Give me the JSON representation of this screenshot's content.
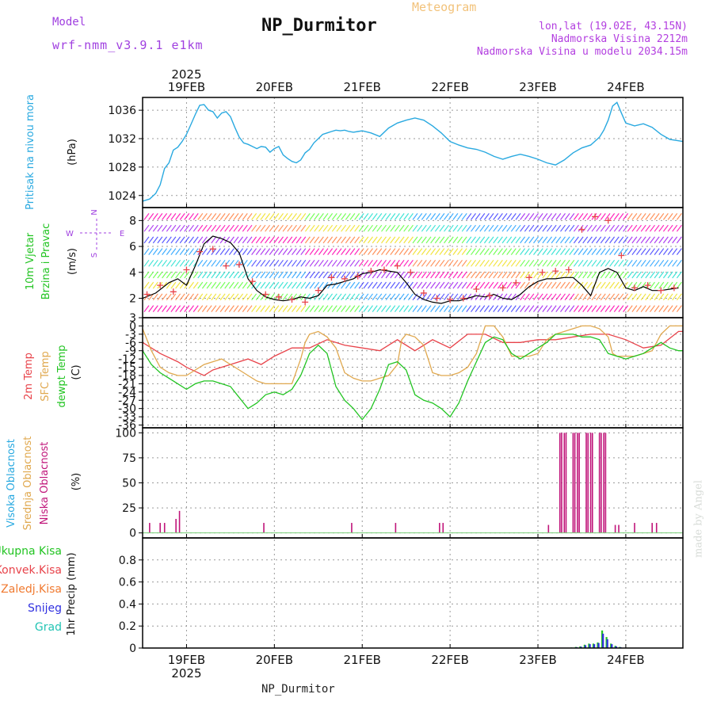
{
  "header": {
    "title": "NP_Durmitor",
    "subtitle": "Meteogram",
    "model_label": "Model",
    "model_name": "wrf-nmm_v3.9.1 e1km",
    "lonlat": "lon,lat (19.02E, 43.15N)",
    "elevation": "Nadmorska Visina 2212m",
    "model_elevation": "Nadmorska Visina u modelu 2034.15m",
    "bottom_label": "NP_Durmitor",
    "watermark": "made by Angel"
  },
  "colors": {
    "pressure": "#29a9e0",
    "wind_speed": "#000000",
    "wind_gust_marker": "#e8434a",
    "temp_2m": "#e8434a",
    "temp_sfc": "#e0a84e",
    "dewpoint": "#22c422",
    "cloud_high": "#29a9e0",
    "cloud_mid": "#e0a84e",
    "cloud_low": "#c0157a",
    "precip_total": "#22c422",
    "precip_conv": "#e8434a",
    "precip_frozen": "#f07a30",
    "precip_snow": "#3030e0",
    "precip_graupel": "#22c4b4"
  },
  "chart_data": [
    {
      "type": "line",
      "panel": "pressure",
      "labels": [
        "Pritisak na nivou mora"
      ],
      "unit": "(hPa)",
      "x_ticks": [
        "19FEB",
        "20FEB",
        "21FEB",
        "22FEB",
        "23FEB",
        "24FEB"
      ],
      "year_label": "2025",
      "x_range": [
        -0.5,
        5.65
      ],
      "ylim": [
        1022.3,
        1037.8
      ],
      "yticks": [
        1024,
        1028,
        1032,
        1036
      ],
      "grid": true,
      "series": [
        {
          "x": [
            -0.5,
            -0.42,
            -0.35,
            -0.3,
            -0.25,
            -0.2,
            -0.15,
            -0.1,
            -0.05,
            0.0,
            0.05,
            0.1,
            0.15,
            0.2,
            0.25,
            0.3,
            0.35,
            0.4,
            0.45,
            0.5,
            0.55,
            0.6,
            0.65,
            0.7,
            0.75,
            0.8,
            0.85,
            0.9,
            0.95,
            1.0,
            1.05,
            1.1,
            1.15,
            1.2,
            1.25,
            1.3,
            1.35,
            1.4,
            1.45,
            1.5,
            1.55,
            1.6,
            1.65,
            1.7,
            1.75,
            1.8,
            1.85,
            1.9,
            1.95,
            2.0,
            2.1,
            2.2,
            2.3,
            2.4,
            2.5,
            2.6,
            2.7,
            2.8,
            2.9,
            3.0,
            3.1,
            3.2,
            3.3,
            3.4,
            3.5,
            3.6,
            3.7,
            3.8,
            3.9,
            4.0,
            4.1,
            4.2,
            4.3,
            4.4,
            4.5,
            4.6,
            4.7,
            4.75,
            4.8,
            4.85,
            4.9,
            4.95,
            5.0,
            5.1,
            5.2,
            5.3,
            5.4,
            5.5,
            5.6,
            5.65
          ],
          "values": [
            1023.2,
            1023.5,
            1024.3,
            1025.5,
            1027.8,
            1028.6,
            1030.4,
            1030.8,
            1031.6,
            1032.6,
            1034.0,
            1035.4,
            1036.7,
            1036.8,
            1036.0,
            1035.8,
            1034.9,
            1035.6,
            1035.8,
            1035.1,
            1033.6,
            1032.2,
            1031.4,
            1031.2,
            1030.9,
            1030.6,
            1030.9,
            1030.8,
            1030.1,
            1030.6,
            1030.9,
            1029.7,
            1029.2,
            1028.8,
            1028.6,
            1029.0,
            1030.0,
            1030.5,
            1031.4,
            1032.0,
            1032.6,
            1032.8,
            1033.0,
            1033.2,
            1033.1,
            1033.2,
            1033.0,
            1032.9,
            1033.0,
            1033.1,
            1032.8,
            1032.3,
            1033.5,
            1034.2,
            1034.6,
            1034.9,
            1034.6,
            1033.8,
            1032.8,
            1031.6,
            1031.1,
            1030.7,
            1030.5,
            1030.1,
            1029.5,
            1029.1,
            1029.5,
            1029.8,
            1029.5,
            1029.1,
            1028.6,
            1028.3,
            1029.0,
            1030.0,
            1030.7,
            1031.1,
            1032.2,
            1033.2,
            1034.6,
            1036.6,
            1037.1,
            1035.6,
            1034.2,
            1033.8,
            1034.1,
            1033.6,
            1032.6,
            1031.9,
            1031.7,
            1031.6
          ]
        }
      ]
    },
    {
      "type": "line",
      "panel": "wind",
      "labels": [
        "10m Vjetar",
        "Brzina i Pravac"
      ],
      "unit": "(m/s)",
      "direction_legend": [
        "N",
        "W",
        "E",
        "S"
      ],
      "x_range": [
        -0.5,
        5.65
      ],
      "ylim": [
        0.5,
        9.0
      ],
      "yticks": [
        2,
        4,
        6,
        8
      ],
      "grid": true,
      "series": [
        {
          "name": "speed",
          "x": [
            -0.5,
            -0.35,
            -0.2,
            -0.1,
            0.0,
            0.1,
            0.2,
            0.3,
            0.4,
            0.5,
            0.6,
            0.7,
            0.8,
            0.9,
            1.0,
            1.1,
            1.2,
            1.3,
            1.4,
            1.5,
            1.6,
            1.7,
            1.8,
            1.9,
            2.0,
            2.1,
            2.2,
            2.3,
            2.4,
            2.5,
            2.6,
            2.7,
            2.8,
            2.9,
            3.0,
            3.1,
            3.2,
            3.3,
            3.4,
            3.5,
            3.6,
            3.7,
            3.8,
            3.9,
            4.0,
            4.1,
            4.2,
            4.3,
            4.4,
            4.5,
            4.6,
            4.7,
            4.8,
            4.9,
            5.0,
            5.1,
            5.2,
            5.3,
            5.4,
            5.5,
            5.6
          ],
          "values": [
            2.0,
            2.4,
            3.2,
            3.5,
            3.0,
            4.5,
            6.2,
            6.8,
            6.6,
            6.3,
            5.5,
            3.5,
            2.6,
            2.1,
            1.9,
            1.8,
            1.9,
            2.1,
            2.0,
            2.2,
            3.0,
            3.1,
            3.3,
            3.5,
            3.9,
            4.0,
            4.2,
            4.1,
            4.0,
            3.2,
            2.3,
            1.9,
            1.7,
            1.6,
            1.8,
            1.8,
            2.0,
            2.2,
            2.1,
            2.3,
            2.0,
            1.9,
            2.3,
            2.9,
            3.3,
            3.5,
            3.5,
            3.6,
            3.6,
            3.0,
            2.2,
            4.0,
            4.3,
            4.0,
            2.8,
            2.6,
            2.9,
            2.6,
            2.6,
            2.7,
            2.8
          ]
        },
        {
          "name": "gust",
          "x": [
            -0.45,
            -0.3,
            -0.15,
            0.0,
            0.15,
            0.3,
            0.45,
            0.6,
            0.75,
            0.9,
            1.05,
            1.2,
            1.35,
            1.5,
            1.65,
            1.8,
            1.95,
            2.1,
            2.25,
            2.4,
            2.55,
            2.7,
            2.85,
            3.0,
            3.15,
            3.3,
            3.45,
            3.6,
            3.75,
            3.9,
            4.05,
            4.2,
            4.35,
            4.5,
            4.65,
            4.8,
            4.95,
            5.1,
            5.25,
            5.4,
            5.55
          ],
          "values": [
            2.3,
            3.0,
            2.5,
            4.2,
            5.6,
            5.8,
            4.5,
            4.6,
            3.3,
            2.3,
            2.1,
            1.9,
            1.7,
            2.6,
            3.6,
            3.5,
            3.7,
            4.1,
            4.2,
            4.5,
            4.0,
            2.4,
            2.0,
            1.9,
            2.0,
            2.7,
            2.2,
            2.8,
            3.2,
            3.6,
            4.0,
            4.1,
            4.2,
            7.3,
            8.3,
            8.0,
            5.3,
            2.8,
            3.0,
            2.6,
            2.8
          ]
        }
      ]
    },
    {
      "type": "line",
      "panel": "temperature",
      "labels": [
        "2m Temp",
        "SFC Temp",
        "dewpt Temp"
      ],
      "unit": "(C)",
      "x_range": [
        -0.5,
        5.65
      ],
      "ylim": [
        -37,
        3
      ],
      "yticks": [
        3,
        0,
        -3,
        -6,
        -9,
        -12,
        -15,
        -18,
        -21,
        -24,
        -27,
        -30,
        -33,
        -36
      ],
      "grid": true,
      "series": [
        {
          "name": "2m Temp",
          "x": [
            -0.5,
            -0.3,
            -0.1,
            0.0,
            0.2,
            0.3,
            0.5,
            0.7,
            0.85,
            1.0,
            1.2,
            1.4,
            1.6,
            1.8,
            2.0,
            2.2,
            2.4,
            2.6,
            2.8,
            3.0,
            3.2,
            3.4,
            3.6,
            3.8,
            4.0,
            4.2,
            4.4,
            4.6,
            4.8,
            5.0,
            5.2,
            5.4,
            5.6,
            5.65
          ],
          "values": [
            -6,
            -10,
            -13,
            -15,
            -18,
            -16,
            -14,
            -12,
            -14,
            -11,
            -8,
            -8,
            -5,
            -7,
            -8,
            -9,
            -5,
            -9,
            -5,
            -8,
            -3,
            -3,
            -6,
            -6,
            -5,
            -5,
            -4,
            -3,
            -3,
            -5,
            -8,
            -7,
            -2,
            -2
          ]
        },
        {
          "name": "SFC Temp",
          "x": [
            -0.5,
            -0.4,
            -0.3,
            -0.2,
            -0.1,
            0.0,
            0.1,
            0.2,
            0.3,
            0.4,
            0.5,
            0.6,
            0.7,
            0.8,
            0.9,
            1.0,
            1.1,
            1.2,
            1.3,
            1.35,
            1.4,
            1.5,
            1.6,
            1.7,
            1.8,
            1.9,
            2.0,
            2.1,
            2.2,
            2.3,
            2.4,
            2.45,
            2.5,
            2.6,
            2.7,
            2.8,
            2.9,
            3.0,
            3.1,
            3.2,
            3.3,
            3.4,
            3.45,
            3.5,
            3.6,
            3.7,
            3.8,
            3.9,
            4.0,
            4.1,
            4.2,
            4.3,
            4.4,
            4.5,
            4.6,
            4.7,
            4.8,
            4.85,
            4.9,
            5.0,
            5.1,
            5.2,
            5.3,
            5.4,
            5.5,
            5.6,
            5.65
          ],
          "values": [
            -1,
            -9,
            -15,
            -17,
            -18,
            -18,
            -16,
            -14,
            -13,
            -12,
            -14,
            -16,
            -18,
            -20,
            -21,
            -21,
            -21,
            -21,
            -12,
            -6,
            -3,
            -2,
            -4,
            -8,
            -17,
            -19,
            -20,
            -20,
            -19,
            -18,
            -14,
            -5,
            -3,
            -4,
            -7,
            -17,
            -18,
            -18,
            -17,
            -15,
            -10,
            0,
            0,
            0,
            -4,
            -11,
            -11,
            -11,
            -10,
            -5,
            -3,
            -2,
            -1,
            0,
            0,
            -1,
            -4,
            -10,
            -11,
            -11,
            -11,
            -10,
            -9,
            -3,
            0,
            0,
            0
          ]
        },
        {
          "name": "dewpt Temp",
          "x": [
            -0.5,
            -0.4,
            -0.3,
            -0.2,
            -0.1,
            0.0,
            0.1,
            0.2,
            0.3,
            0.4,
            0.5,
            0.6,
            0.7,
            0.8,
            0.9,
            1.0,
            1.1,
            1.2,
            1.3,
            1.4,
            1.5,
            1.6,
            1.7,
            1.8,
            1.9,
            2.0,
            2.1,
            2.2,
            2.3,
            2.4,
            2.5,
            2.6,
            2.7,
            2.8,
            2.9,
            3.0,
            3.1,
            3.2,
            3.3,
            3.4,
            3.45,
            3.5,
            3.6,
            3.7,
            3.8,
            3.9,
            4.0,
            4.1,
            4.2,
            4.3,
            4.4,
            4.5,
            4.6,
            4.7,
            4.8,
            4.9,
            5.0,
            5.1,
            5.2,
            5.3,
            5.4,
            5.5,
            5.6,
            5.65
          ],
          "values": [
            -9,
            -14,
            -17,
            -19,
            -21,
            -23,
            -21,
            -20,
            -20,
            -21,
            -22,
            -26,
            -30,
            -28,
            -25,
            -24,
            -25,
            -23,
            -18,
            -10,
            -7,
            -10,
            -22,
            -27,
            -30,
            -34,
            -30,
            -23,
            -14,
            -13,
            -16,
            -25,
            -27,
            -28,
            -30,
            -33,
            -28,
            -20,
            -13,
            -6,
            -5,
            -4,
            -5,
            -10,
            -12,
            -10,
            -8,
            -6,
            -3,
            -3,
            -3,
            -4,
            -4,
            -5,
            -10,
            -11,
            -12,
            -11,
            -10,
            -8,
            -6,
            -8,
            -9,
            -9
          ]
        }
      ]
    },
    {
      "type": "bar",
      "panel": "cloud",
      "labels": [
        "Visoka Oblacnost",
        "Srednja Oblacnost",
        "Niska Oblacnost"
      ],
      "unit": "(%)",
      "x_range": [
        -0.5,
        5.65
      ],
      "ylim": [
        -5,
        105
      ],
      "yticks": [
        0,
        25,
        50,
        75,
        100
      ],
      "grid": true,
      "series": [
        {
          "name": "Niska Oblacnost",
          "x": [
            -0.42,
            -0.3,
            -0.25,
            -0.12,
            -0.08,
            0.88,
            1.88,
            2.38,
            2.88,
            2.92,
            4.12,
            4.25,
            4.27,
            4.3,
            4.32,
            4.4,
            4.42,
            4.45,
            4.47,
            4.55,
            4.57,
            4.6,
            4.62,
            4.7,
            4.72,
            4.75,
            4.77,
            4.88,
            4.92,
            5.1,
            5.3,
            5.35
          ],
          "values": [
            10,
            10,
            10,
            14,
            22,
            10,
            10,
            10,
            10,
            10,
            8,
            100,
            100,
            100,
            100,
            100,
            100,
            100,
            100,
            100,
            100,
            100,
            100,
            100,
            100,
            100,
            100,
            8,
            8,
            10,
            10,
            10
          ]
        }
      ]
    },
    {
      "type": "bar",
      "panel": "precip",
      "labels": [
        "Ukupna Kisa",
        "Konvek.Kisa",
        "Zaledj.Kisa",
        "Snijeg",
        "Grad"
      ],
      "unit": "1hr Precip (mm)",
      "x_ticks": [
        "19FEB",
        "20FEB",
        "21FEB",
        "22FEB",
        "23FEB",
        "24FEB"
      ],
      "year_label": "2025",
      "x_range": [
        -0.5,
        5.65
      ],
      "ylim": [
        0,
        1.0
      ],
      "yticks": [
        0,
        0.2,
        0.4,
        0.6,
        0.8
      ],
      "grid": true,
      "series": [
        {
          "name": "Ukupna Kisa",
          "x": [
            4.38,
            4.43,
            4.48,
            4.53,
            4.58,
            4.63,
            4.68,
            4.73,
            4.78,
            4.83,
            4.88,
            4.93
          ],
          "values": [
            0.005,
            0.01,
            0.015,
            0.03,
            0.04,
            0.04,
            0.05,
            0.16,
            0.1,
            0.04,
            0.02,
            0.01
          ]
        },
        {
          "name": "Snijeg",
          "x": [
            4.39,
            4.44,
            4.49,
            4.54,
            4.59,
            4.64,
            4.69,
            4.74,
            4.79,
            4.84,
            4.89,
            4.94
          ],
          "values": [
            0.003,
            0.008,
            0.012,
            0.025,
            0.035,
            0.035,
            0.045,
            0.13,
            0.08,
            0.035,
            0.015,
            0.008
          ]
        }
      ]
    }
  ]
}
